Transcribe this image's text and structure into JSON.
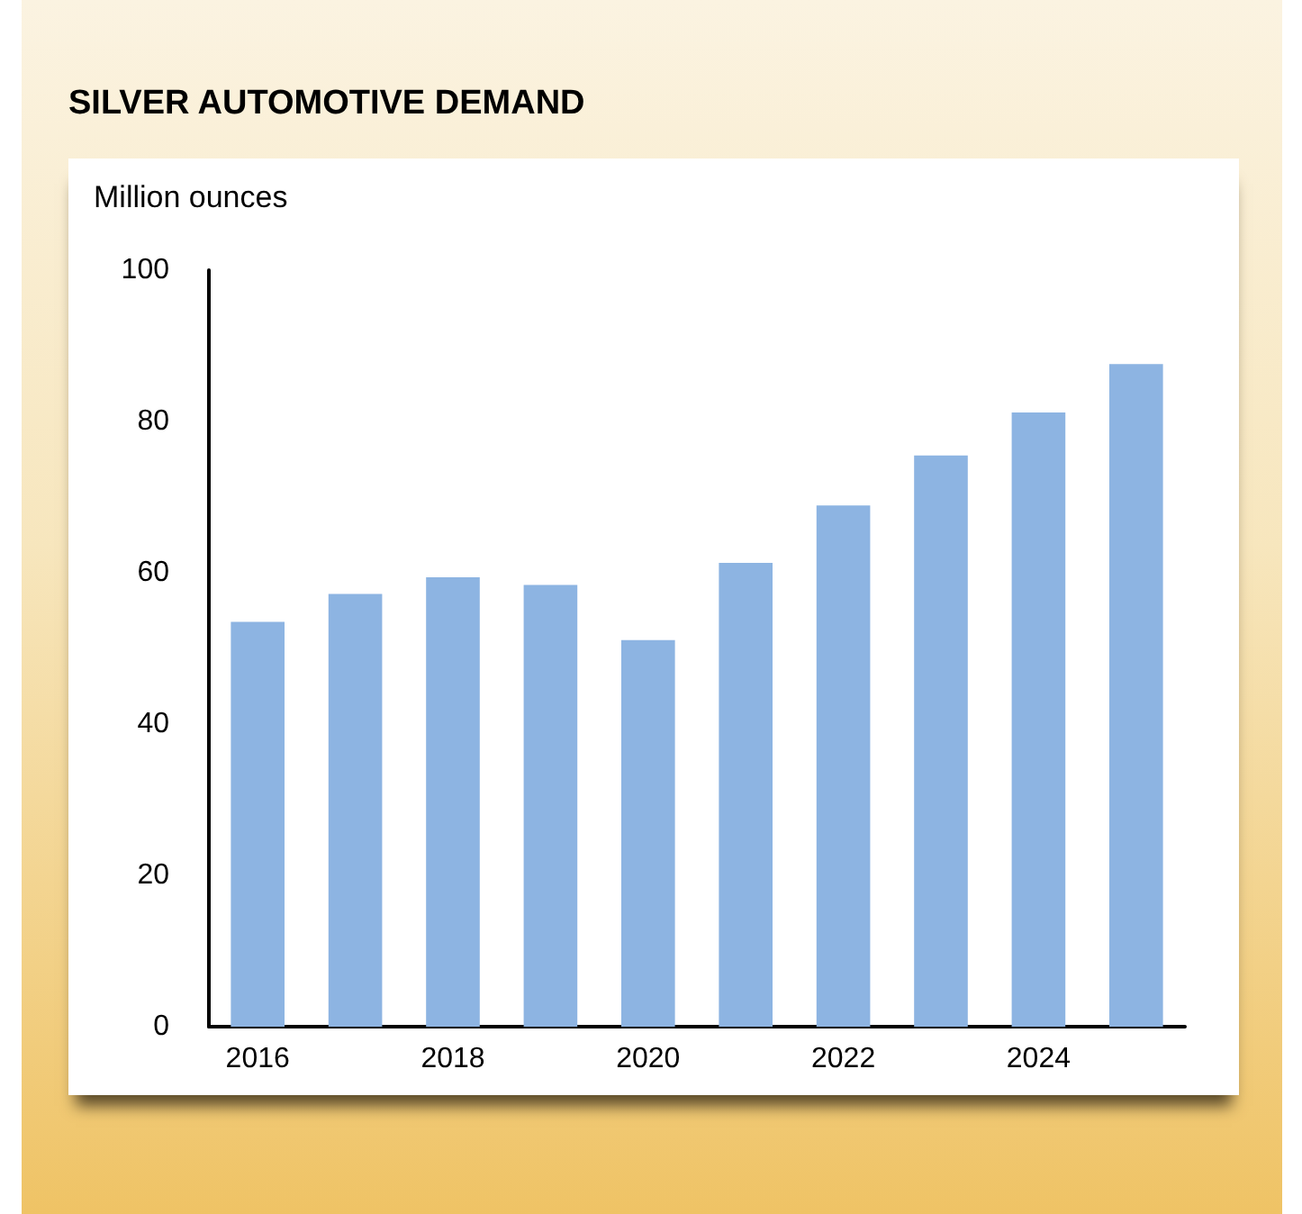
{
  "chart_data": {
    "type": "bar",
    "title": "SILVER AUTOMOTIVE DEMAND",
    "ylabel": "Million ounces",
    "categories": [
      "2016",
      null,
      "2018",
      null,
      "2020",
      null,
      "2022",
      null,
      "2024",
      null
    ],
    "values": [
      53.5,
      57.2,
      59.4,
      58.4,
      51.1,
      61.3,
      68.9,
      75.5,
      81.2,
      87.6
    ],
    "color": "#8db4e2",
    "ylim": [
      0,
      100
    ],
    "yticks": [
      0,
      20,
      40,
      60,
      80,
      100
    ],
    "grid": false
  }
}
